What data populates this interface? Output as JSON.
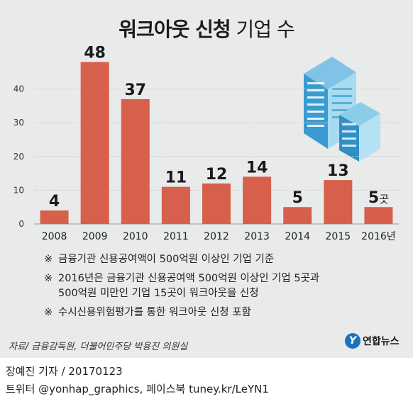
{
  "header": {
    "title_bold": "워크아웃 신청",
    "title_light": "기업 수"
  },
  "chart_data": {
    "type": "bar",
    "categories": [
      "2008",
      "2009",
      "2010",
      "2011",
      "2012",
      "2013",
      "2014",
      "2015",
      "2016년"
    ],
    "values": [
      4,
      48,
      37,
      11,
      12,
      14,
      5,
      13,
      5
    ],
    "data_labels": [
      "4",
      "48",
      "37",
      "11",
      "12",
      "14",
      "5",
      "13",
      "5"
    ],
    "last_label_unit": "곳",
    "yticks": [
      0,
      10,
      20,
      30,
      40
    ],
    "ylim": [
      0,
      50
    ],
    "bar_color": "#d6604b",
    "grid": true,
    "title": "워크아웃 신청 기업 수"
  },
  "notes": {
    "mark": "※",
    "items": [
      "금융기관 신용공여액이 500억원 이상인 기업 기준",
      "2016년은 금융기관 신용공여액 500억원 이상인 기업 5곳과",
      "500억원 미만인 기업 15곳이 워크아웃을 신청",
      "수시신용위험평가를 통한 워크아웃 신청 포함"
    ]
  },
  "source": "자료/ 금융감독원, 더불어민주당 박용진 의원실",
  "logo": {
    "mark": "Y",
    "text": "연합뉴스"
  },
  "footer": {
    "credit": "장예진 기자 / 20170123",
    "social": "트위터 @yonhap_graphics, 페이스북 tuney.kr/LeYN1"
  }
}
